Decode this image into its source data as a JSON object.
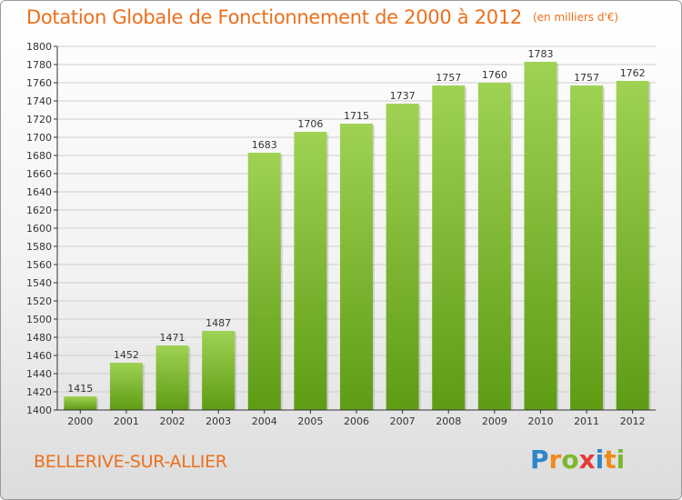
{
  "title": "Dotation Globale de Fonctionnement de 2000 à 2012",
  "unit_note": "(en milliers d'€)",
  "commune": "BELLERIVE-SUR-ALLIER",
  "logo": {
    "text": "Proxiti",
    "letters": [
      {
        "ch": "P",
        "color": "#2e86c9"
      },
      {
        "ch": "r",
        "color": "#f08a1c"
      },
      {
        "ch": "o",
        "color": "#7bb82e"
      },
      {
        "ch": "x",
        "color": "#e33b3b"
      },
      {
        "ch": "i",
        "color": "#2e86c9"
      },
      {
        "ch": "t",
        "color": "#f08a1c"
      },
      {
        "ch": "i",
        "color": "#7bb82e"
      }
    ]
  },
  "colors": {
    "title": "#ec6f1c",
    "bar_top": "#9fd253",
    "bar_bottom": "#5e9c14",
    "grid": "#cfcfcf",
    "axis": "#333333"
  },
  "chart_data": {
    "type": "bar",
    "title": "Dotation Globale de Fonctionnement de 2000 à 2012",
    "xlabel": "",
    "ylabel": "",
    "categories": [
      "2000",
      "2001",
      "2002",
      "2003",
      "2004",
      "2005",
      "2006",
      "2007",
      "2008",
      "2009",
      "2010",
      "2011",
      "2012"
    ],
    "values": [
      1415,
      1452,
      1471,
      1487,
      1683,
      1706,
      1715,
      1737,
      1757,
      1760,
      1783,
      1757,
      1762
    ],
    "ylim": [
      1400,
      1800
    ],
    "ytick_step": 20,
    "grid": true,
    "data_labels": true
  }
}
